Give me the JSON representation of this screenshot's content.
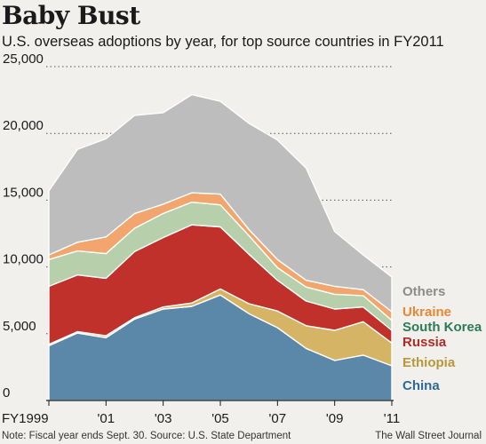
{
  "header": {
    "title": "Baby Bust",
    "subtitle": "U.S. overseas adoptions by year, for top source countries in FY2011"
  },
  "footer": {
    "note": "Note: Fiscal year ends Sept. 30. Source: U.S. State Department",
    "credit": "The Wall Street Journal"
  },
  "chart_data": {
    "type": "area",
    "stacked": true,
    "x": [
      1999,
      2000,
      2001,
      2002,
      2003,
      2004,
      2005,
      2006,
      2007,
      2008,
      2009,
      2010,
      2011
    ],
    "x_tick_labels": [
      "FY1999",
      "'01",
      "'03",
      "'05",
      "'07",
      "'09",
      "'11"
    ],
    "y_ticks": [
      0,
      5000,
      10000,
      15000,
      20000,
      25000
    ],
    "y_tick_labels": [
      "0",
      "5,000",
      "10,000",
      "15,000",
      "20,000",
      "25,000"
    ],
    "ylim": [
      0,
      25000
    ],
    "grid": true,
    "legend_placement": "right",
    "series": [
      {
        "name": "China",
        "color": "#5b87a8",
        "label_color": "#2e6a93",
        "values": [
          4100,
          5050,
          4700,
          6100,
          6850,
          7050,
          7900,
          6500,
          5450,
          3900,
          3000,
          3400,
          2600
        ]
      },
      {
        "name": "Ethiopia",
        "color": "#d6b466",
        "label_color": "#b8963a",
        "values": [
          100,
          100,
          150,
          100,
          150,
          250,
          450,
          750,
          1250,
          1700,
          2250,
          2500,
          1700
        ]
      },
      {
        "name": "Russia",
        "color": "#c1312b",
        "label_color": "#b22a24",
        "values": [
          4350,
          4250,
          4300,
          4950,
          5200,
          5850,
          4650,
          3700,
          2300,
          1850,
          1600,
          1100,
          950
        ]
      },
      {
        "name": "South Korea",
        "color": "#b7cfaa",
        "label_color": "#2d7a56",
        "values": [
          2000,
          1800,
          1850,
          1750,
          1800,
          1700,
          1650,
          1400,
          950,
          1050,
          1100,
          850,
          750
        ]
      },
      {
        "name": "Ukraine",
        "color": "#f2a56c",
        "label_color": "#e98732",
        "values": [
          350,
          650,
          1250,
          1100,
          700,
          700,
          800,
          450,
          600,
          500,
          600,
          450,
          650
        ]
      },
      {
        "name": "Others",
        "color": "#bdbdbd",
        "label_color": "#8c8c8c",
        "values": [
          4800,
          6950,
          7350,
          7350,
          6850,
          7350,
          6950,
          7950,
          8950,
          8400,
          4100,
          2600,
          2600
        ]
      }
    ]
  }
}
